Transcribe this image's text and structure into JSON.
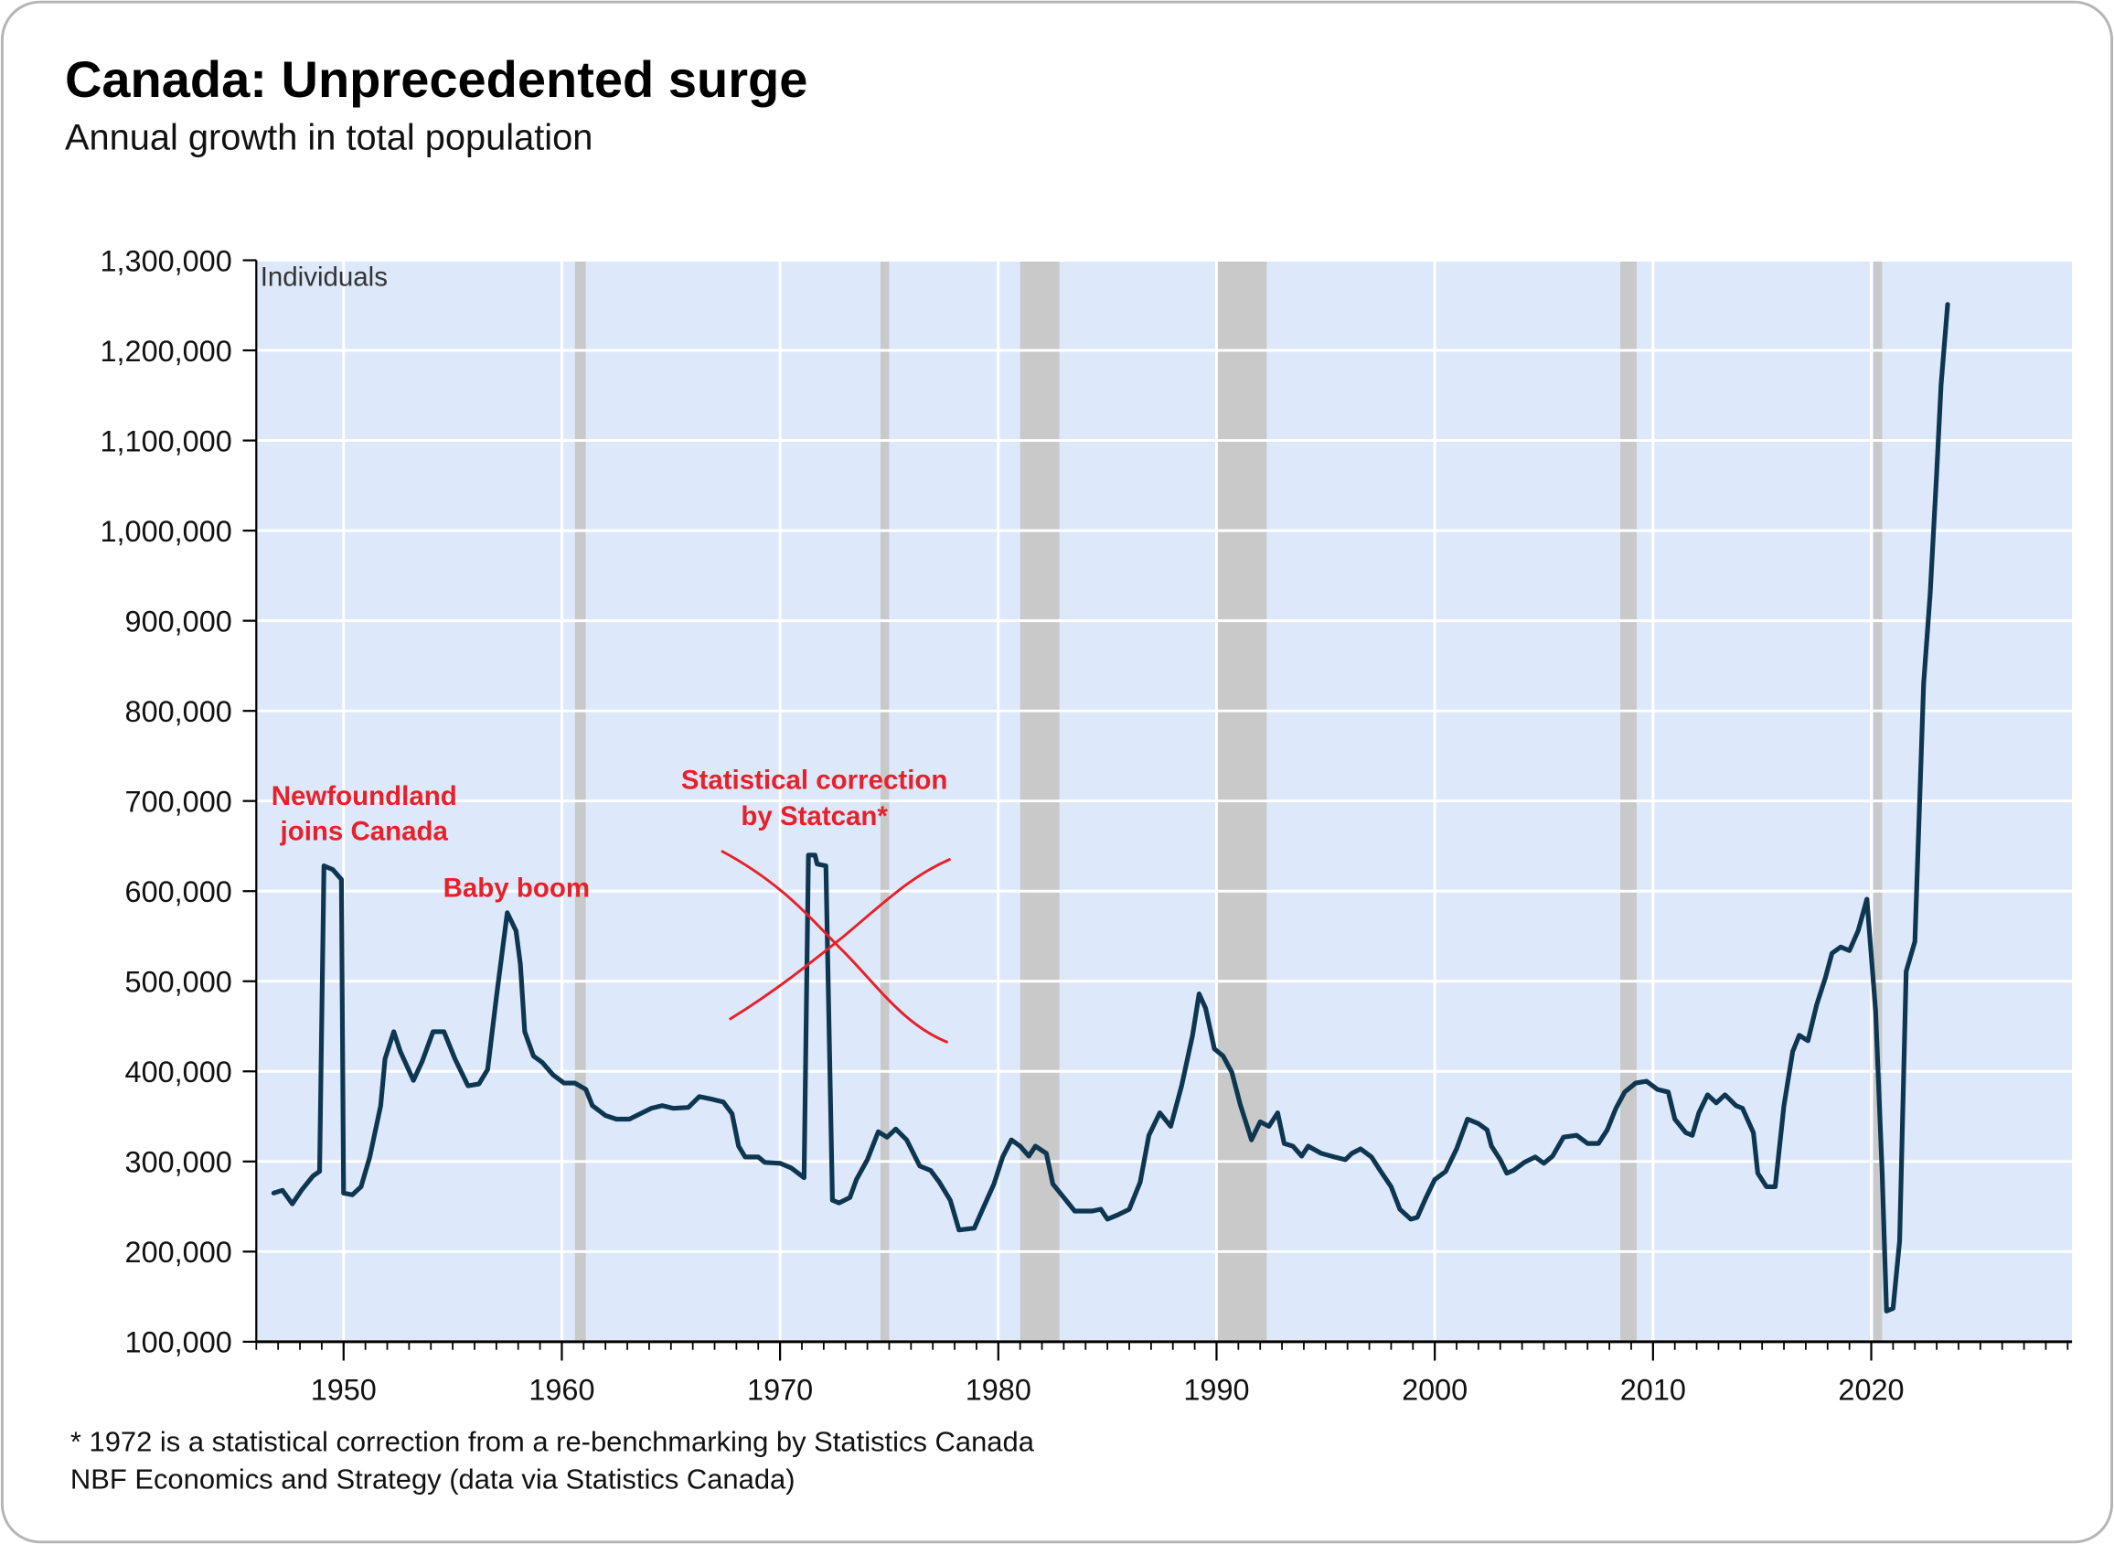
{
  "chart_data": {
    "type": "line",
    "title": "Canada: Unprecedented surge",
    "subtitle": "Annual growth in total population",
    "y_label": "Individuals",
    "annotations": [
      [
        "Newfoundland",
        "joins Canada"
      ],
      [
        "Baby boom"
      ],
      [
        "Statistical correction",
        "by Statcan*"
      ]
    ],
    "notes": [
      "* 1972 is a statistical correction from a re-benchmarking by Statistics Canada",
      "NBF Economics and Strategy (data via Statistics Canada)"
    ],
    "color": "#0e3650",
    "recession_color": "#c9c9c9",
    "background": "#dde9fb",
    "grid": true,
    "xlim": [
      1946,
      2029.2
    ],
    "xticks": [
      1950,
      1960,
      1970,
      1980,
      1990,
      2000,
      2010,
      2020
    ],
    "ylim": [
      100000,
      1300000
    ],
    "yticks": [
      {
        "value": 100000,
        "label": "100,000"
      },
      {
        "value": 200000,
        "label": "200,000"
      },
      {
        "value": 300000,
        "label": "300,000"
      },
      {
        "value": 400000,
        "label": "400,000"
      },
      {
        "value": 500000,
        "label": "500,000"
      },
      {
        "value": 600000,
        "label": "600,000"
      },
      {
        "value": 700000,
        "label": "700,000"
      },
      {
        "value": 800000,
        "label": "800,000"
      },
      {
        "value": 900000,
        "label": "900,000"
      },
      {
        "value": 1000000,
        "label": "1,000,000"
      },
      {
        "value": 1100000,
        "label": "1,100,000"
      },
      {
        "value": 1200000,
        "label": "1,200,000"
      },
      {
        "value": 1300000,
        "label": "1,300,000"
      }
    ],
    "recessions": [
      [
        1960.6,
        1961.1
      ],
      [
        1974.6,
        1975.0
      ],
      [
        1981.0,
        1982.8
      ],
      [
        1990.0,
        1992.3
      ],
      [
        2008.5,
        2009.25
      ],
      [
        2020.1,
        2020.5
      ]
    ],
    "x": [
      1946.8,
      1947.2,
      1947.65,
      1948.1,
      1948.6,
      1948.9,
      1949.1,
      1949.5,
      1949.9,
      1950.0,
      1950.4,
      1950.8,
      1951.2,
      1951.7,
      1951.9,
      1952.3,
      1952.6,
      1953.2,
      1953.6,
      1954.1,
      1954.6,
      1955.1,
      1955.7,
      1956.2,
      1956.6,
      1957.0,
      1957.5,
      1957.9,
      1958.1,
      1958.3,
      1958.7,
      1959.1,
      1959.6,
      1960.1,
      1960.6,
      1961.1,
      1961.4,
      1962.0,
      1962.5,
      1963.1,
      1963.6,
      1964.1,
      1964.6,
      1965.1,
      1965.8,
      1966.3,
      1966.9,
      1967.4,
      1967.8,
      1968.1,
      1968.4,
      1969.0,
      1969.3,
      1970.0,
      1970.5,
      1971.1,
      1971.3,
      1971.6,
      1971.7,
      1972.1,
      1972.4,
      1972.7,
      1973.2,
      1973.5,
      1974.0,
      1974.5,
      1974.9,
      1975.3,
      1975.8,
      1976.4,
      1976.9,
      1977.3,
      1977.8,
      1978.2,
      1978.9,
      1979.3,
      1979.8,
      1980.2,
      1980.6,
      1981.0,
      1981.4,
      1981.7,
      1982.2,
      1982.5,
      1983.1,
      1983.5,
      1984.3,
      1984.7,
      1985.0,
      1985.5,
      1986.0,
      1986.5,
      1986.9,
      1987.4,
      1987.9,
      1988.4,
      1988.9,
      1989.2,
      1989.5,
      1989.9,
      1990.3,
      1990.7,
      1991.1,
      1991.3,
      1991.6,
      1992.0,
      1992.4,
      1992.8,
      1993.1,
      1993.5,
      1993.9,
      1994.2,
      1994.8,
      1995.4,
      1995.9,
      1996.2,
      1996.6,
      1997.1,
      1997.5,
      1998.0,
      1998.4,
      1998.9,
      1999.2,
      1999.6,
      2000.0,
      2000.5,
      2001.0,
      2001.5,
      2002.0,
      2002.4,
      2002.6,
      2003.0,
      2003.3,
      2003.6,
      2004.1,
      2004.6,
      2005.0,
      2005.4,
      2005.9,
      2006.5,
      2007.0,
      2007.5,
      2007.9,
      2008.3,
      2008.7,
      2009.2,
      2009.7,
      2010.2,
      2010.7,
      2011.0,
      2011.5,
      2011.8,
      2012.1,
      2012.5,
      2012.9,
      2013.3,
      2013.8,
      2014.1,
      2014.6,
      2014.8,
      2015.2,
      2015.6,
      2016.0,
      2016.4,
      2016.7,
      2017.1,
      2017.5,
      2017.9,
      2018.2,
      2018.6,
      2019.0,
      2019.4,
      2019.8,
      2020.2,
      2020.5,
      2020.7,
      2021.0,
      2021.3,
      2021.6,
      2022.0,
      2022.4,
      2022.7,
      2023.0,
      2023.2,
      2023.5
    ],
    "values": [
      265000,
      268000,
      253000,
      269000,
      284000,
      289000,
      628000,
      624000,
      613000,
      265000,
      263000,
      272000,
      305000,
      362000,
      414000,
      444000,
      422000,
      390000,
      411000,
      444000,
      444000,
      414000,
      384000,
      386000,
      402000,
      482000,
      576000,
      556000,
      519000,
      444000,
      417000,
      410000,
      396000,
      387000,
      387000,
      380000,
      362000,
      351000,
      347000,
      347000,
      353000,
      359000,
      362000,
      359000,
      360000,
      372000,
      369000,
      366000,
      353000,
      317000,
      305000,
      305000,
      299000,
      298000,
      293000,
      282000,
      640000,
      640000,
      630000,
      628000,
      257000,
      254000,
      260000,
      280000,
      302000,
      333000,
      327000,
      336000,
      324000,
      295000,
      290000,
      277000,
      257000,
      224000,
      226000,
      248000,
      275000,
      305000,
      324000,
      317000,
      306000,
      317000,
      309000,
      275000,
      257000,
      245000,
      245000,
      247000,
      236000,
      241000,
      247000,
      277000,
      329000,
      354000,
      339000,
      384000,
      440000,
      486000,
      470000,
      425000,
      417000,
      399000,
      362000,
      347000,
      324000,
      344000,
      339000,
      354000,
      320000,
      317000,
      306000,
      317000,
      309000,
      305000,
      302000,
      309000,
      314000,
      305000,
      290000,
      272000,
      247000,
      236000,
      238000,
      260000,
      280000,
      289000,
      314000,
      347000,
      342000,
      335000,
      317000,
      302000,
      287000,
      290000,
      299000,
      305000,
      298000,
      306000,
      327000,
      329000,
      320000,
      320000,
      335000,
      359000,
      377000,
      387000,
      389000,
      380000,
      377000,
      347000,
      332000,
      329000,
      354000,
      374000,
      365000,
      374000,
      362000,
      359000,
      332000,
      287000,
      272000,
      272000,
      362000,
      422000,
      440000,
      434000,
      474000,
      504000,
      531000,
      538000,
      534000,
      556000,
      591000,
      467000,
      287000,
      134000,
      137000,
      212000,
      511000,
      544000,
      830000,
      930000,
      1065000,
      1162000,
      1251000
    ]
  }
}
